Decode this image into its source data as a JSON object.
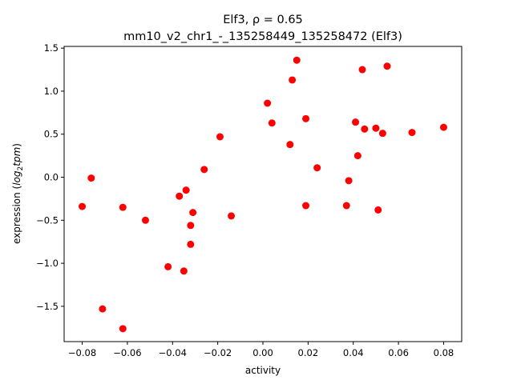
{
  "chart_data": {
    "type": "scatter",
    "title_line1": "Elf3, ρ = 0.65",
    "title_line2": "mm10_v2_chr1_-_135258449_135258472 (Elf3)",
    "xlabel": "activity",
    "ylabel_prefix": "expression (",
    "ylabel_math": "log",
    "ylabel_sub": "2",
    "ylabel_math2": "tpm",
    "ylabel_suffix": ")",
    "xlim": [
      -0.088,
      0.088
    ],
    "ylim": [
      -1.91,
      1.52
    ],
    "x_ticks": [
      -0.08,
      -0.06,
      -0.04,
      -0.02,
      0.0,
      0.02,
      0.04,
      0.06,
      0.08
    ],
    "x_tick_labels": [
      "−0.08",
      "−0.06",
      "−0.04",
      "−0.02",
      "0.00",
      "0.02",
      "0.04",
      "0.06",
      "0.08"
    ],
    "y_ticks": [
      1.5,
      1.0,
      0.5,
      0.0,
      -0.5,
      -1.0,
      -1.5
    ],
    "y_tick_labels": [
      "1.5",
      "1.0",
      "0.5",
      "0.0",
      "−0.5",
      "−1.0",
      "−1.5"
    ],
    "grid": false,
    "marker_color": "#ff0000",
    "points": [
      {
        "x": -0.08,
        "y": -0.34
      },
      {
        "x": -0.076,
        "y": -0.01
      },
      {
        "x": -0.071,
        "y": -1.53
      },
      {
        "x": -0.062,
        "y": -1.76
      },
      {
        "x": -0.062,
        "y": -0.35
      },
      {
        "x": -0.052,
        "y": -0.5
      },
      {
        "x": -0.042,
        "y": -1.04
      },
      {
        "x": -0.037,
        "y": -0.22
      },
      {
        "x": -0.035,
        "y": -1.09
      },
      {
        "x": -0.034,
        "y": -0.15
      },
      {
        "x": -0.032,
        "y": -0.78
      },
      {
        "x": -0.032,
        "y": -0.56
      },
      {
        "x": -0.031,
        "y": -0.41
      },
      {
        "x": -0.026,
        "y": 0.09
      },
      {
        "x": -0.019,
        "y": 0.47
      },
      {
        "x": -0.014,
        "y": -0.45
      },
      {
        "x": 0.002,
        "y": 0.86
      },
      {
        "x": 0.004,
        "y": 0.63
      },
      {
        "x": 0.012,
        "y": 0.38
      },
      {
        "x": 0.013,
        "y": 1.13
      },
      {
        "x": 0.015,
        "y": 1.36
      },
      {
        "x": 0.019,
        "y": -0.33
      },
      {
        "x": 0.019,
        "y": 0.68
      },
      {
        "x": 0.024,
        "y": 0.11
      },
      {
        "x": 0.037,
        "y": -0.33
      },
      {
        "x": 0.038,
        "y": -0.04
      },
      {
        "x": 0.041,
        "y": 0.64
      },
      {
        "x": 0.042,
        "y": 0.25
      },
      {
        "x": 0.044,
        "y": 1.25
      },
      {
        "x": 0.045,
        "y": 0.56
      },
      {
        "x": 0.05,
        "y": 0.57
      },
      {
        "x": 0.051,
        "y": -0.38
      },
      {
        "x": 0.053,
        "y": 0.51
      },
      {
        "x": 0.055,
        "y": 1.29
      },
      {
        "x": 0.066,
        "y": 0.52
      },
      {
        "x": 0.08,
        "y": 0.58
      }
    ]
  }
}
